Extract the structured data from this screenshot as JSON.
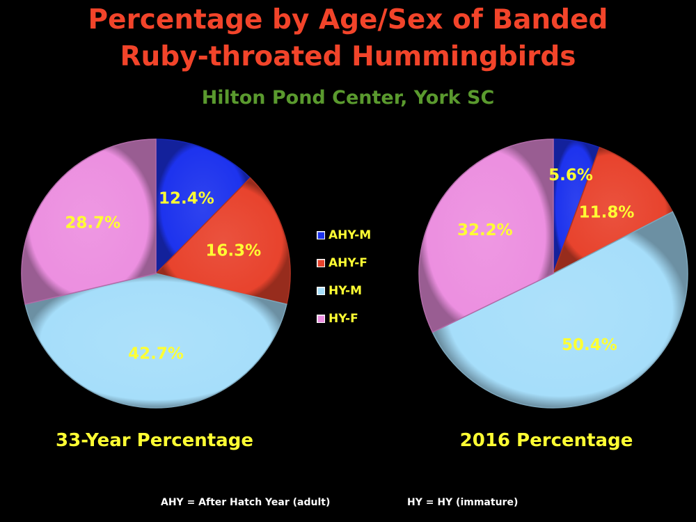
{
  "header": {
    "title_line1": "Percentage by Age/Sex of Banded",
    "title_line2": "Ruby-throated Hummingbirds",
    "subtitle": "Hilton Pond Center, York SC"
  },
  "colors": {
    "AHY-M": "#1d33ee",
    "AHY-F": "#e8432d",
    "HY-M": "#a6defa",
    "HY-F": "#ec8fe0",
    "title": "#f2442a",
    "subtitle": "#5a9a2e",
    "label": "#ffff33"
  },
  "legend": {
    "items": [
      {
        "label": "AHY-M",
        "color": "#1d33ee"
      },
      {
        "label": "AHY-F",
        "color": "#e8432d"
      },
      {
        "label": "HY-M",
        "color": "#a6defa"
      },
      {
        "label": "HY-F",
        "color": "#ec8fe0"
      }
    ],
    "placement": "center"
  },
  "footnotes": {
    "ahy": "AHY = After Hatch Year (adult)",
    "hy": "HY = HY (immature)"
  },
  "chart_data": [
    {
      "type": "pie",
      "title": "33-Year Percentage",
      "categories": [
        "AHY-M",
        "AHY-F",
        "HY-M",
        "HY-F"
      ],
      "values": [
        12.4,
        16.3,
        42.7,
        28.7
      ],
      "labels": [
        "12.4%",
        "16.3%",
        "42.7%",
        "28.7%"
      ],
      "start": "12 o'clock",
      "direction": "clockwise"
    },
    {
      "type": "pie",
      "title": "2016 Percentage",
      "categories": [
        "AHY-M",
        "AHY-F",
        "HY-M",
        "HY-F"
      ],
      "values": [
        5.6,
        11.8,
        50.4,
        32.2
      ],
      "labels": [
        "5.6%",
        "11.8%",
        "50.4%",
        "32.2%"
      ],
      "start": "12 o'clock",
      "direction": "clockwise"
    }
  ]
}
